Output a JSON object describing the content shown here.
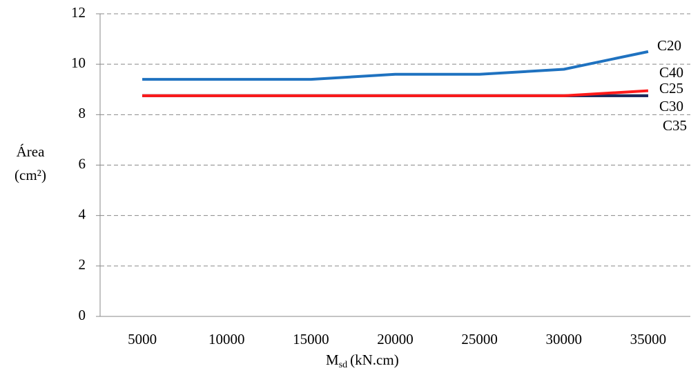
{
  "chart_data": {
    "type": "line",
    "y_label": [
      "Área",
      "(cm²)"
    ],
    "x_label": [
      "M",
      "sd",
      "(kN.cm)"
    ],
    "categories": [
      "5000",
      "10000",
      "15000",
      "20000",
      "25000",
      "30000",
      "35000"
    ],
    "series": [
      {
        "name": "C20",
        "color": "#1f72c0",
        "values": [
          9.4,
          9.4,
          9.4,
          9.6,
          9.6,
          9.8,
          10.5
        ]
      },
      {
        "name": "C40",
        "color": "#7030a0",
        "values": [
          8.75,
          8.75,
          8.75,
          8.75,
          8.75,
          8.75,
          8.75
        ]
      },
      {
        "name": "C25",
        "color": "#ff1a1a",
        "values": [
          8.75,
          8.75,
          8.75,
          8.75,
          8.75,
          8.75,
          8.95
        ]
      },
      {
        "name": "C30",
        "color": "#1b2a5a",
        "values": [
          8.75,
          8.75,
          8.75,
          8.75,
          8.75,
          8.75,
          8.75
        ]
      },
      {
        "name": "C35",
        "color": "#4a8a3a",
        "values": [
          8.75,
          8.75,
          8.75,
          8.75,
          8.75,
          8.75,
          8.75
        ]
      }
    ],
    "ylim": [
      0,
      12
    ],
    "yticks": [
      0,
      2,
      4,
      6,
      8,
      10,
      12
    ],
    "grid": true
  }
}
